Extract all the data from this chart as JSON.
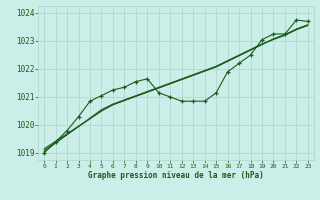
{
  "xlabel": "Graphe pression niveau de la mer (hPa)",
  "bg_color": "#cceee8",
  "grid_color": "#aad4ce",
  "line_color": "#1a5c1a",
  "hours": [
    0,
    1,
    2,
    3,
    4,
    5,
    6,
    7,
    8,
    9,
    10,
    11,
    12,
    13,
    14,
    15,
    16,
    17,
    18,
    19,
    20,
    21,
    22,
    23
  ],
  "pressure_main": [
    1019.0,
    1019.4,
    1019.8,
    1020.3,
    1020.85,
    1021.05,
    1021.25,
    1021.35,
    1021.55,
    1021.65,
    1021.15,
    1021.0,
    1020.85,
    1020.85,
    1020.85,
    1021.15,
    1021.9,
    1022.2,
    1022.5,
    1023.05,
    1023.25,
    1023.25,
    1023.75,
    1023.7
  ],
  "pressure_line2": [
    1019.05,
    1019.35,
    1019.65,
    1019.95,
    1020.25,
    1020.55,
    1020.75,
    1020.9,
    1021.05,
    1021.2,
    1021.35,
    1021.5,
    1021.65,
    1021.8,
    1021.95,
    1022.1,
    1022.3,
    1022.5,
    1022.7,
    1022.9,
    1023.05,
    1023.2,
    1023.4,
    1023.55
  ],
  "pressure_line3": [
    1019.1,
    1019.38,
    1019.66,
    1019.94,
    1020.22,
    1020.5,
    1020.72,
    1020.87,
    1021.02,
    1021.17,
    1021.32,
    1021.47,
    1021.62,
    1021.77,
    1021.92,
    1022.07,
    1022.27,
    1022.47,
    1022.67,
    1022.87,
    1023.07,
    1023.22,
    1023.42,
    1023.57
  ],
  "pressure_line4": [
    1019.15,
    1019.42,
    1019.69,
    1019.96,
    1020.23,
    1020.5,
    1020.73,
    1020.88,
    1021.03,
    1021.18,
    1021.33,
    1021.48,
    1021.63,
    1021.78,
    1021.93,
    1022.08,
    1022.28,
    1022.48,
    1022.68,
    1022.88,
    1023.08,
    1023.23,
    1023.43,
    1023.58
  ],
  "ylim": [
    1018.75,
    1024.25
  ],
  "yticks": [
    1019,
    1020,
    1021,
    1022,
    1023,
    1024
  ],
  "xticks": [
    0,
    1,
    2,
    3,
    4,
    5,
    6,
    7,
    8,
    9,
    10,
    11,
    12,
    13,
    14,
    15,
    16,
    17,
    18,
    19,
    20,
    21,
    22,
    23
  ]
}
